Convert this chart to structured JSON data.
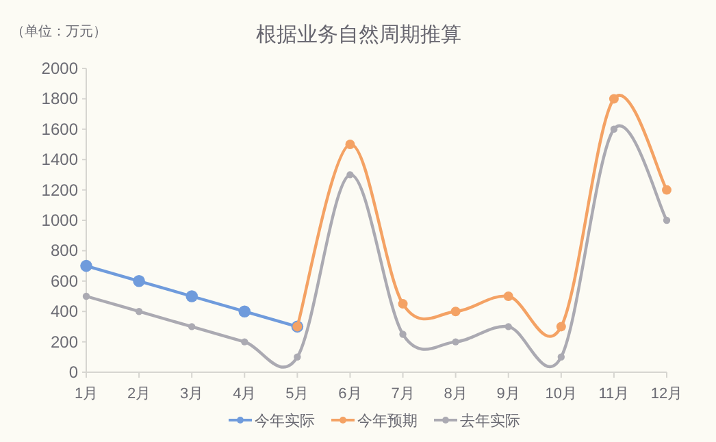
{
  "chart_data": {
    "type": "line",
    "title": "根据业务自然周期推算",
    "ylabel": "（单位：万元）",
    "categories": [
      "1月",
      "2月",
      "3月",
      "4月",
      "5月",
      "6月",
      "7月",
      "8月",
      "9月",
      "10月",
      "11月",
      "12月"
    ],
    "series": [
      {
        "name": "今年实际",
        "color": "#6f9bdc",
        "values": [
          700,
          600,
          500,
          400,
          300,
          null,
          null,
          null,
          null,
          null,
          null,
          null
        ]
      },
      {
        "name": "今年预期",
        "color": "#f4a264",
        "values": [
          null,
          null,
          null,
          null,
          300,
          1500,
          450,
          400,
          500,
          300,
          1800,
          1200
        ]
      },
      {
        "name": "去年实际",
        "color": "#abaab2",
        "values": [
          500,
          400,
          300,
          200,
          100,
          1300,
          250,
          200,
          300,
          100,
          1600,
          1000
        ]
      }
    ],
    "ylim": [
      0,
      2000
    ],
    "yticks": [
      0,
      200,
      400,
      600,
      800,
      1000,
      1200,
      1400,
      1600,
      1800,
      2000
    ],
    "grid": false,
    "legend": "bottom",
    "marker": "circle",
    "line_style": "solid"
  }
}
